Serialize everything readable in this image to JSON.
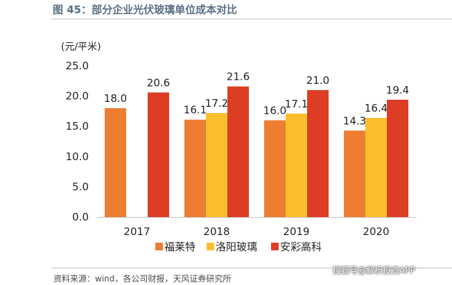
{
  "figure_title": "图 45：部分企业光伏玻璃单位成本对比",
  "source": "资料来源：wind，各公司财报，天风证券研究所",
  "watermark": "搜狐号@解析投资APP",
  "chart_data": {
    "type": "bar",
    "ylabel": "(元/平米)",
    "ylim": [
      0,
      25
    ],
    "yticks": [
      0,
      5,
      10,
      15,
      20,
      25
    ],
    "ytick_labels": [
      "0.0",
      "5.0",
      "10.0",
      "15.0",
      "20.0",
      "25.0"
    ],
    "categories": [
      "2017",
      "2018",
      "2019",
      "2020"
    ],
    "series": [
      {
        "name": "福莱特",
        "color": "#ed7d31",
        "values": [
          18.0,
          16.1,
          16.0,
          14.3
        ],
        "labels": [
          "18.0",
          "16.1",
          "16.0",
          "14.3"
        ]
      },
      {
        "name": "洛阳玻璃",
        "color": "#fbbf2d",
        "values": [
          null,
          17.2,
          17.1,
          16.4
        ],
        "labels": [
          "",
          "17.2",
          "17.1",
          "16.4"
        ]
      },
      {
        "name": "安彩高科",
        "color": "#dc3d24",
        "values": [
          20.6,
          21.6,
          21.0,
          19.4
        ],
        "labels": [
          "20.6",
          "21.6",
          "21.0",
          "19.4"
        ]
      }
    ],
    "legend_position": "bottom"
  }
}
